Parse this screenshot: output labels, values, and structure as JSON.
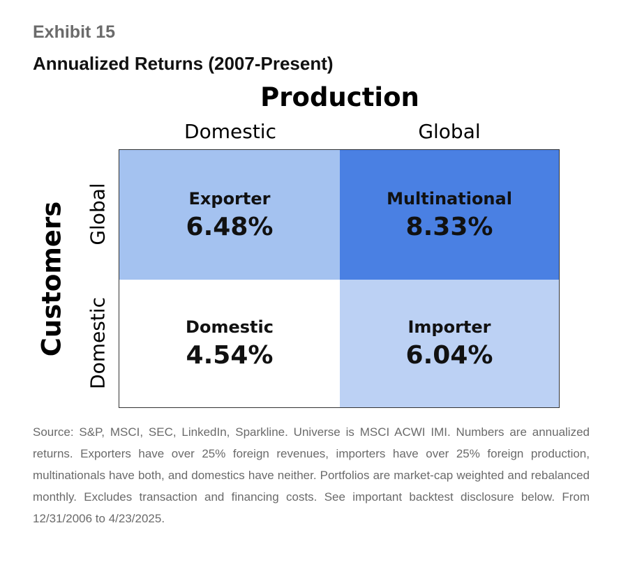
{
  "header": {
    "exhibit": "Exhibit 15",
    "title": "Annualized Returns (2007-Present)"
  },
  "matrix": {
    "column_axis": "Production",
    "columns": [
      "Domestic",
      "Global"
    ],
    "row_axis": "Customers",
    "rows": [
      "Global",
      "Domestic"
    ],
    "cells": [
      [
        {
          "label": "Exporter",
          "value": "6.48%"
        },
        {
          "label": "Multinational",
          "value": "8.33%"
        }
      ],
      [
        {
          "label": "Domestic",
          "value": "4.54%"
        },
        {
          "label": "Importer",
          "value": "6.04%"
        }
      ]
    ]
  },
  "footnote": "Source: S&P, MSCI, SEC, LinkedIn, Sparkline. Universe is MSCI ACWI IMI. Numbers are annualized returns. Exporters have over 25% foreign revenues, importers have over 25% foreign production, multinationals have both, and domestics have neither. Portfolios are market-cap weighted and rebalanced monthly. Excludes transaction and financing costs. See important backtest disclosure below. From 12/31/2006 to 4/23/2025."
}
